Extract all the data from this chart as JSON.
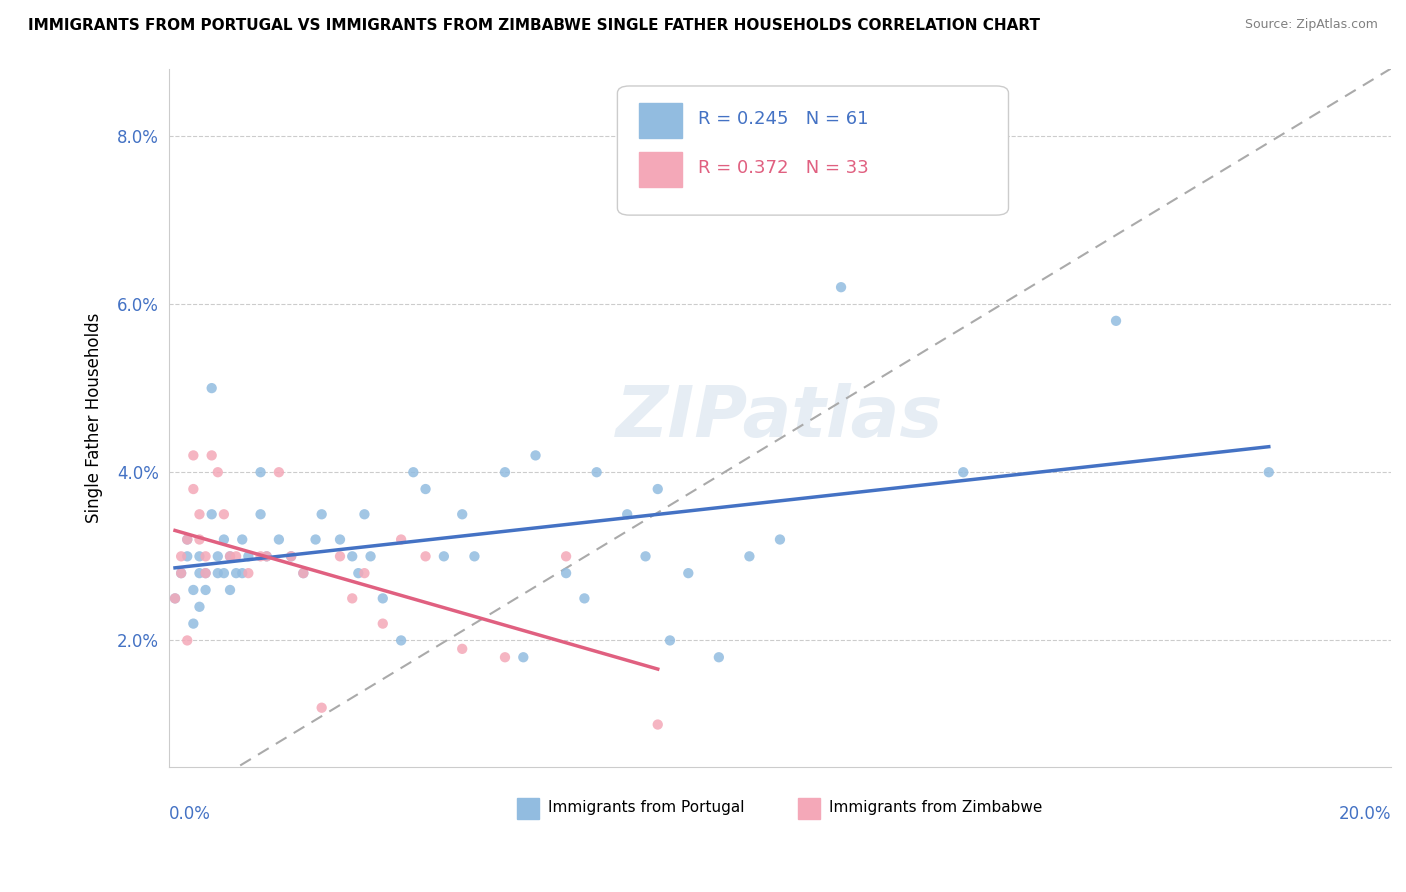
{
  "title": "IMMIGRANTS FROM PORTUGAL VS IMMIGRANTS FROM ZIMBABWE SINGLE FATHER HOUSEHOLDS CORRELATION CHART",
  "source": "Source: ZipAtlas.com",
  "ylabel": "Single Father Households",
  "y_ticks": [
    0.02,
    0.04,
    0.06,
    0.08
  ],
  "y_tick_labels": [
    "2.0%",
    "4.0%",
    "6.0%",
    "8.0%"
  ],
  "x_lim": [
    0.0,
    0.2
  ],
  "y_lim": [
    0.005,
    0.088
  ],
  "portugal_R": 0.245,
  "portugal_N": 61,
  "zimbabwe_R": 0.372,
  "zimbabwe_N": 33,
  "portugal_color": "#92bce0",
  "zimbabwe_color": "#f4a8b8",
  "portugal_line_color": "#4472c4",
  "zimbabwe_line_color": "#e06080",
  "portugal_scatter_x": [
    0.001,
    0.002,
    0.003,
    0.003,
    0.004,
    0.004,
    0.005,
    0.005,
    0.005,
    0.006,
    0.006,
    0.007,
    0.007,
    0.008,
    0.008,
    0.009,
    0.009,
    0.01,
    0.01,
    0.011,
    0.012,
    0.012,
    0.013,
    0.015,
    0.015,
    0.016,
    0.018,
    0.02,
    0.022,
    0.024,
    0.025,
    0.028,
    0.03,
    0.031,
    0.032,
    0.033,
    0.035,
    0.038,
    0.04,
    0.042,
    0.045,
    0.048,
    0.05,
    0.055,
    0.058,
    0.06,
    0.065,
    0.068,
    0.07,
    0.075,
    0.078,
    0.08,
    0.082,
    0.085,
    0.09,
    0.095,
    0.1,
    0.11,
    0.13,
    0.155,
    0.18
  ],
  "portugal_scatter_y": [
    0.025,
    0.028,
    0.03,
    0.032,
    0.022,
    0.026,
    0.028,
    0.024,
    0.03,
    0.026,
    0.028,
    0.035,
    0.05,
    0.028,
    0.03,
    0.028,
    0.032,
    0.026,
    0.03,
    0.028,
    0.032,
    0.028,
    0.03,
    0.035,
    0.04,
    0.03,
    0.032,
    0.03,
    0.028,
    0.032,
    0.035,
    0.032,
    0.03,
    0.028,
    0.035,
    0.03,
    0.025,
    0.02,
    0.04,
    0.038,
    0.03,
    0.035,
    0.03,
    0.04,
    0.018,
    0.042,
    0.028,
    0.025,
    0.04,
    0.035,
    0.03,
    0.038,
    0.02,
    0.028,
    0.018,
    0.03,
    0.032,
    0.062,
    0.04,
    0.058,
    0.04
  ],
  "zimbabwe_scatter_x": [
    0.001,
    0.002,
    0.002,
    0.003,
    0.003,
    0.004,
    0.004,
    0.005,
    0.005,
    0.006,
    0.006,
    0.007,
    0.008,
    0.009,
    0.01,
    0.011,
    0.013,
    0.015,
    0.016,
    0.018,
    0.02,
    0.022,
    0.025,
    0.028,
    0.03,
    0.032,
    0.035,
    0.038,
    0.042,
    0.048,
    0.055,
    0.065,
    0.08
  ],
  "zimbabwe_scatter_y": [
    0.025,
    0.03,
    0.028,
    0.032,
    0.02,
    0.038,
    0.042,
    0.032,
    0.035,
    0.028,
    0.03,
    0.042,
    0.04,
    0.035,
    0.03,
    0.03,
    0.028,
    0.03,
    0.03,
    0.04,
    0.03,
    0.028,
    0.012,
    0.03,
    0.025,
    0.028,
    0.022,
    0.032,
    0.03,
    0.019,
    0.018,
    0.03,
    0.01
  ]
}
